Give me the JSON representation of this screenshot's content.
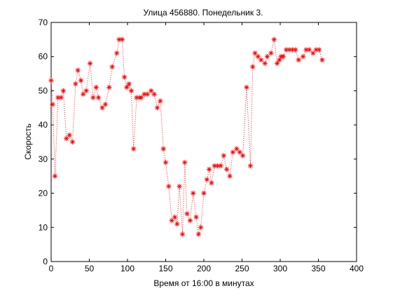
{
  "chart_data": {
    "type": "scatter",
    "title": "Улица 456880. Понедельник 3.",
    "xlabel": "Время от 16:00 в минутах",
    "ylabel": "Скорость",
    "xlim": [
      0,
      400
    ],
    "ylim": [
      0,
      70
    ],
    "xticks": [
      0,
      50,
      100,
      150,
      200,
      250,
      300,
      350,
      400
    ],
    "yticks": [
      0,
      10,
      20,
      30,
      40,
      50,
      60,
      70
    ],
    "grid": false,
    "line_style": "dotted",
    "marker": "asterisk",
    "color": "#ff0000",
    "series": [
      {
        "x": [
          0,
          2,
          5,
          9,
          13,
          16,
          20,
          24,
          28,
          32,
          35,
          39,
          42,
          46,
          51,
          55,
          59,
          62,
          67,
          71,
          76,
          80,
          86,
          89,
          93,
          96,
          99,
          102,
          105,
          108,
          112,
          116,
          118,
          122,
          126,
          131,
          135,
          139,
          143,
          147,
          150,
          154,
          158,
          162,
          165,
          168,
          172,
          175,
          178,
          182,
          186,
          190,
          193,
          196,
          200,
          204,
          207,
          210,
          214,
          218,
          222,
          226,
          230,
          234,
          238,
          243,
          247,
          251,
          256,
          261,
          264,
          267,
          271,
          275,
          280,
          283,
          288,
          292,
          296,
          299,
          301,
          304,
          308,
          312,
          316,
          320,
          324,
          330,
          334,
          338,
          343,
          347,
          351,
          355
        ],
        "y": [
          53,
          46,
          25,
          48,
          48,
          50,
          36,
          37,
          35,
          52,
          56,
          53,
          49,
          50,
          58,
          48,
          51,
          48,
          45,
          46,
          51,
          57,
          61,
          65,
          65,
          54,
          51,
          52,
          50,
          33,
          48,
          48,
          48,
          49,
          49,
          50,
          49,
          45,
          47,
          33,
          29,
          22,
          12,
          13,
          11,
          22,
          8,
          29,
          14,
          12,
          20,
          13,
          8,
          10,
          20,
          24,
          27,
          23,
          28,
          28,
          28,
          31,
          27,
          25,
          32,
          33,
          32,
          31,
          51,
          28,
          57,
          61,
          60,
          59,
          58,
          60,
          61,
          65,
          58,
          59,
          60,
          60,
          62,
          62,
          62,
          62,
          59,
          60,
          62,
          62,
          61,
          62,
          62,
          59
        ]
      }
    ]
  }
}
